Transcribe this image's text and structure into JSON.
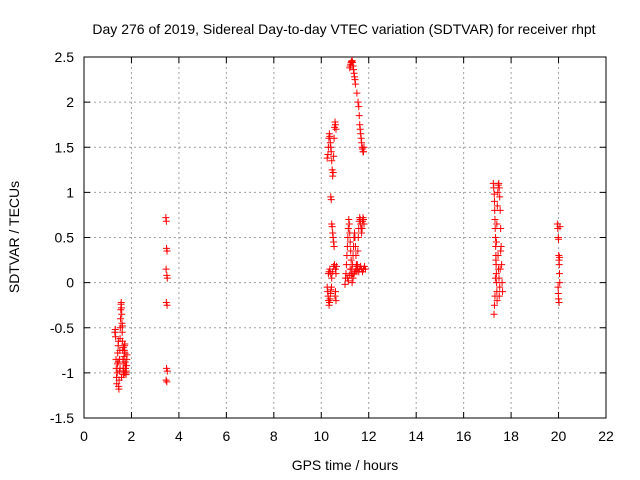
{
  "chart_data": {
    "type": "scatter",
    "title": "Day 276 of 2019, Sidereal Day-to-day VTEC variation (SDTVAR) for receiver rhpt",
    "xlabel": "GPS time / hours",
    "ylabel": "SDTVAR / TECUs",
    "xlim": [
      0,
      22
    ],
    "ylim": [
      -1.5,
      2.5
    ],
    "x_ticks": [
      0,
      2,
      4,
      6,
      8,
      10,
      12,
      14,
      16,
      18,
      20,
      22
    ],
    "y_ticks": [
      -1.5,
      -1,
      -0.5,
      0,
      0.5,
      1,
      1.5,
      2,
      2.5
    ],
    "x_tick_labels": [
      "0",
      "2",
      "4",
      "6",
      "8",
      "10",
      "12",
      "14",
      "16",
      "18",
      "20",
      "22"
    ],
    "y_tick_labels": [
      "-1.5",
      "-1",
      "-0.5",
      "0",
      "0.5",
      "1",
      "1.5",
      "2",
      "2.5"
    ],
    "grid": true,
    "marker": "+",
    "color": "#ff0000",
    "series": [
      {
        "name": "SDTVAR",
        "points": [
          [
            1.3,
            -0.55
          ],
          [
            1.32,
            -0.52
          ],
          [
            1.33,
            -0.6
          ],
          [
            1.35,
            -0.85
          ],
          [
            1.36,
            -0.95
          ],
          [
            1.37,
            -1.05
          ],
          [
            1.38,
            -1.12
          ],
          [
            1.4,
            -1.0
          ],
          [
            1.41,
            -0.9
          ],
          [
            1.42,
            -0.78
          ],
          [
            1.44,
            -0.7
          ],
          [
            1.45,
            -0.65
          ],
          [
            1.46,
            -1.15
          ],
          [
            1.47,
            -1.18
          ],
          [
            1.48,
            -1.08
          ],
          [
            1.49,
            -0.98
          ],
          [
            1.5,
            -0.85
          ],
          [
            1.51,
            -0.75
          ],
          [
            1.52,
            -0.62
          ],
          [
            1.53,
            -0.5
          ],
          [
            1.54,
            -0.4
          ],
          [
            1.55,
            -0.3
          ],
          [
            1.56,
            -0.24
          ],
          [
            1.57,
            -0.22
          ],
          [
            1.58,
            -0.28
          ],
          [
            1.59,
            -0.35
          ],
          [
            1.6,
            -0.45
          ],
          [
            1.61,
            -0.55
          ],
          [
            1.62,
            -0.65
          ],
          [
            1.63,
            -0.75
          ],
          [
            1.64,
            -0.85
          ],
          [
            1.65,
            -0.95
          ],
          [
            1.66,
            -1.02
          ],
          [
            1.67,
            -0.98
          ],
          [
            1.68,
            -0.9
          ],
          [
            1.69,
            -0.82
          ],
          [
            1.7,
            -0.75
          ],
          [
            1.71,
            -0.7
          ],
          [
            1.72,
            -0.68
          ],
          [
            1.73,
            -0.78
          ],
          [
            1.74,
            -0.88
          ],
          [
            1.75,
            -0.95
          ],
          [
            1.76,
            -1.0
          ],
          [
            1.77,
            -1.02
          ],
          [
            1.78,
            -0.98
          ],
          [
            1.79,
            -0.92
          ],
          [
            1.8,
            -0.85
          ],
          [
            1.81,
            -0.8
          ],
          [
            1.44,
            -0.88
          ],
          [
            1.52,
            -0.95
          ],
          [
            1.58,
            -1.05
          ],
          [
            1.62,
            -0.48
          ],
          [
            1.66,
            -0.72
          ],
          [
            1.7,
            -1.0
          ],
          [
            3.45,
            0.72
          ],
          [
            3.47,
            0.68
          ],
          [
            3.48,
            0.38
          ],
          [
            3.5,
            0.35
          ],
          [
            3.46,
            0.15
          ],
          [
            3.49,
            0.08
          ],
          [
            3.51,
            0.05
          ],
          [
            3.47,
            -0.22
          ],
          [
            3.5,
            -0.25
          ],
          [
            3.48,
            -0.95
          ],
          [
            3.51,
            -0.98
          ],
          [
            3.46,
            -1.08
          ],
          [
            3.49,
            -1.1
          ],
          [
            10.25,
            1.38
          ],
          [
            10.28,
            1.42
          ],
          [
            10.3,
            1.5
          ],
          [
            10.32,
            1.6
          ],
          [
            10.34,
            1.65
          ],
          [
            10.36,
            1.62
          ],
          [
            10.38,
            1.55
          ],
          [
            10.4,
            1.5
          ],
          [
            10.42,
            1.45
          ],
          [
            10.44,
            1.35
          ],
          [
            10.46,
            1.25
          ],
          [
            10.48,
            1.18
          ],
          [
            10.5,
            1.22
          ],
          [
            10.52,
            1.4
          ],
          [
            10.54,
            1.6
          ],
          [
            10.56,
            1.72
          ],
          [
            10.58,
            1.78
          ],
          [
            10.6,
            1.75
          ],
          [
            10.62,
            1.7
          ],
          [
            10.4,
            0.95
          ],
          [
            10.42,
            0.92
          ],
          [
            10.44,
            0.65
          ],
          [
            10.46,
            0.62
          ],
          [
            10.48,
            0.55
          ],
          [
            10.5,
            0.5
          ],
          [
            10.52,
            0.45
          ],
          [
            10.54,
            0.4
          ],
          [
            10.25,
            -0.05
          ],
          [
            10.27,
            -0.1
          ],
          [
            10.29,
            -0.15
          ],
          [
            10.31,
            -0.2
          ],
          [
            10.33,
            -0.25
          ],
          [
            10.35,
            -0.22
          ],
          [
            10.37,
            -0.18
          ],
          [
            10.39,
            -0.12
          ],
          [
            10.41,
            -0.08
          ],
          [
            10.43,
            -0.05
          ],
          [
            10.3,
            0.1
          ],
          [
            10.33,
            0.12
          ],
          [
            10.36,
            0.15
          ],
          [
            10.4,
            0.1
          ],
          [
            10.44,
            0.05
          ],
          [
            10.48,
            0.12
          ],
          [
            10.52,
            0.18
          ],
          [
            10.56,
            0.2
          ],
          [
            10.6,
            0.15
          ],
          [
            10.62,
            0.1
          ],
          [
            10.6,
            -0.1
          ],
          [
            10.58,
            -0.15
          ],
          [
            10.62,
            -0.2
          ],
          [
            10.64,
            0.18
          ],
          [
            11.0,
            -0.02
          ],
          [
            11.02,
            0.05
          ],
          [
            11.04,
            0.1
          ],
          [
            11.06,
            0.2
          ],
          [
            11.08,
            0.3
          ],
          [
            11.1,
            0.4
          ],
          [
            11.12,
            0.5
          ],
          [
            11.14,
            0.6
          ],
          [
            11.16,
            0.7
          ],
          [
            11.18,
            0.65
          ],
          [
            11.2,
            0.55
          ],
          [
            11.22,
            0.45
          ],
          [
            11.24,
            0.35
          ],
          [
            11.26,
            0.25
          ],
          [
            11.28,
            0.15
          ],
          [
            11.3,
            0.1
          ],
          [
            11.32,
            0.2
          ],
          [
            11.34,
            0.3
          ],
          [
            11.36,
            0.4
          ],
          [
            11.38,
            0.5
          ],
          [
            11.4,
            0.55
          ],
          [
            11.42,
            0.5
          ],
          [
            11.44,
            0.4
          ],
          [
            11.46,
            0.3
          ],
          [
            11.48,
            0.2
          ],
          [
            11.5,
            0.12
          ],
          [
            11.52,
            0.2
          ],
          [
            11.54,
            0.35
          ],
          [
            11.56,
            0.5
          ],
          [
            11.58,
            0.6
          ],
          [
            11.6,
            0.68
          ],
          [
            11.62,
            0.72
          ],
          [
            11.64,
            0.7
          ],
          [
            11.66,
            0.65
          ],
          [
            11.68,
            0.6
          ],
          [
            11.7,
            0.55
          ],
          [
            11.72,
            0.6
          ],
          [
            11.74,
            0.68
          ],
          [
            11.76,
            0.72
          ],
          [
            11.78,
            0.7
          ],
          [
            11.8,
            0.65
          ],
          [
            11.1,
            0.05
          ],
          [
            11.14,
            0.02
          ],
          [
            11.18,
            0.08
          ],
          [
            11.22,
            0.15
          ],
          [
            11.26,
            0.08
          ],
          [
            11.3,
            0.0
          ],
          [
            11.34,
            0.05
          ],
          [
            11.38,
            0.1
          ],
          [
            11.42,
            0.12
          ],
          [
            11.46,
            0.15
          ],
          [
            11.5,
            0.18
          ],
          [
            11.54,
            0.15
          ],
          [
            11.58,
            0.12
          ],
          [
            11.62,
            0.15
          ],
          [
            11.66,
            0.18
          ],
          [
            11.7,
            0.15
          ],
          [
            11.74,
            0.12
          ],
          [
            11.78,
            0.15
          ],
          [
            11.82,
            0.18
          ],
          [
            11.86,
            0.15
          ],
          [
            11.2,
            2.38
          ],
          [
            11.22,
            2.4
          ],
          [
            11.24,
            2.42
          ],
          [
            11.26,
            2.44
          ],
          [
            11.28,
            2.45
          ],
          [
            11.3,
            2.46
          ],
          [
            11.32,
            2.44
          ],
          [
            11.34,
            2.4
          ],
          [
            11.36,
            2.36
          ],
          [
            11.38,
            2.32
          ],
          [
            11.4,
            2.28
          ],
          [
            11.42,
            2.25
          ],
          [
            11.44,
            2.2
          ],
          [
            11.5,
            2.1
          ],
          [
            11.55,
            2.0
          ],
          [
            11.58,
            1.95
          ],
          [
            11.6,
            1.85
          ],
          [
            11.62,
            1.75
          ],
          [
            11.64,
            1.7
          ],
          [
            11.66,
            1.65
          ],
          [
            11.68,
            1.6
          ],
          [
            11.7,
            1.55
          ],
          [
            11.72,
            1.5
          ],
          [
            11.74,
            1.48
          ],
          [
            11.76,
            1.45
          ],
          [
            11.78,
            1.45
          ],
          [
            11.8,
            1.5
          ],
          [
            17.25,
            1.1
          ],
          [
            17.27,
            1.05
          ],
          [
            17.29,
            0.98
          ],
          [
            17.3,
            0.9
          ],
          [
            17.31,
            0.8
          ],
          [
            17.32,
            0.7
          ],
          [
            17.33,
            0.6
          ],
          [
            17.34,
            0.5
          ],
          [
            17.35,
            0.4
          ],
          [
            17.36,
            0.3
          ],
          [
            17.37,
            0.2
          ],
          [
            17.38,
            0.1
          ],
          [
            17.39,
            0.0
          ],
          [
            17.4,
            -0.1
          ],
          [
            17.41,
            -0.2
          ],
          [
            17.28,
            -0.35
          ],
          [
            17.3,
            -0.25
          ],
          [
            17.32,
            -0.15
          ],
          [
            17.34,
            0.05
          ],
          [
            17.36,
            0.25
          ],
          [
            17.38,
            0.45
          ],
          [
            17.4,
            0.65
          ],
          [
            17.42,
            0.85
          ],
          [
            17.44,
            1.0
          ],
          [
            17.46,
            1.08
          ],
          [
            17.48,
            1.1
          ],
          [
            17.5,
            1.05
          ],
          [
            17.52,
            0.95
          ],
          [
            17.54,
            0.8
          ],
          [
            17.56,
            0.6
          ],
          [
            17.58,
            0.4
          ],
          [
            17.6,
            0.2
          ],
          [
            17.62,
            0.0
          ],
          [
            17.64,
            -0.1
          ],
          [
            17.5,
            -0.15
          ],
          [
            17.52,
            -0.05
          ],
          [
            17.54,
            0.15
          ],
          [
            17.56,
            0.35
          ],
          [
            17.45,
            0.3
          ],
          [
            17.47,
            0.15
          ],
          [
            17.49,
            0.05
          ],
          [
            19.95,
            0.65
          ],
          [
            19.97,
            0.6
          ],
          [
            19.99,
            0.5
          ],
          [
            20.0,
            0.48
          ],
          [
            20.01,
            0.3
          ],
          [
            20.02,
            0.25
          ],
          [
            20.03,
            0.2
          ],
          [
            20.04,
            0.1
          ],
          [
            20.05,
            0.0
          ],
          [
            19.98,
            -0.05
          ],
          [
            19.99,
            -0.12
          ],
          [
            20.0,
            -0.18
          ],
          [
            20.02,
            -0.22
          ],
          [
            20.04,
            0.28
          ],
          [
            20.06,
            0.62
          ]
        ]
      }
    ]
  }
}
